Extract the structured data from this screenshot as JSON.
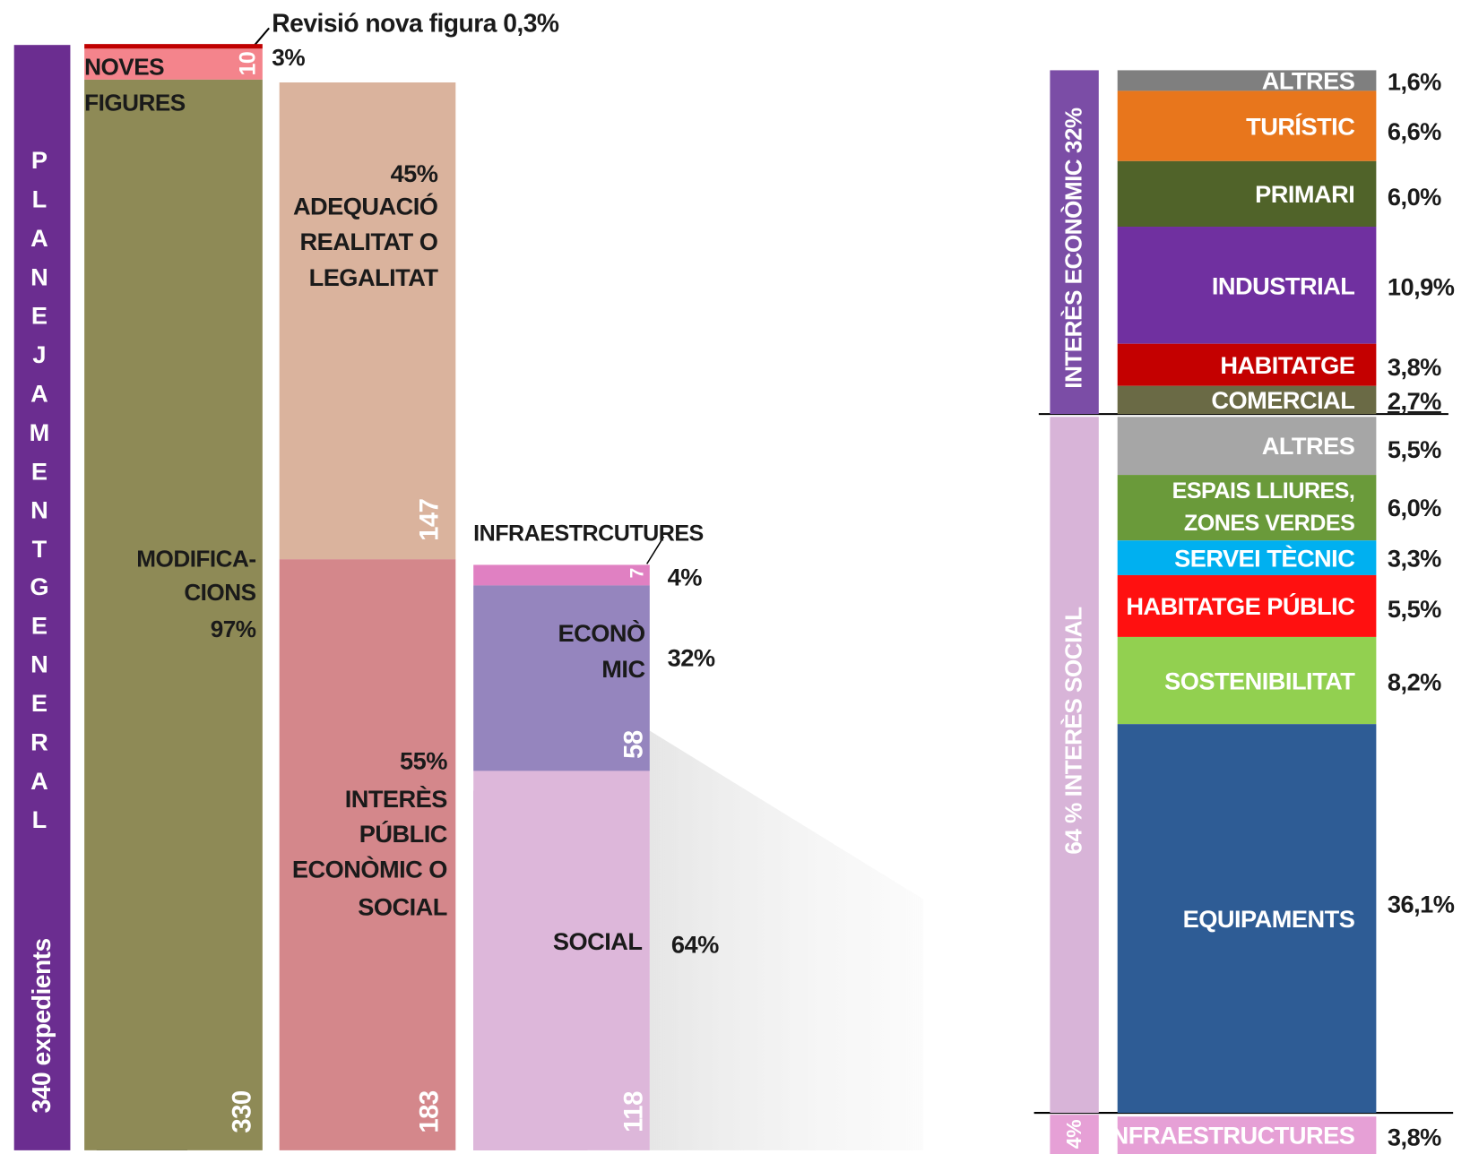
{
  "side_title": {
    "word1": "PLANEJAMENT",
    "word2": "GENERAL",
    "total": "340 expedients"
  },
  "revision_note": {
    "label": "Revisió nova figura 0,3%",
    "percent": "3%"
  },
  "column_types": {
    "noves": {
      "lines": [
        "NOVES",
        "FIGURES"
      ],
      "count": "10"
    },
    "modificacions": {
      "lines": [
        "MODIFICA-",
        "CIONS",
        "97%"
      ],
      "count": "330"
    }
  },
  "column_reasons": {
    "adequacio": {
      "lines": [
        "45%",
        "ADEQUACIÓ",
        "REALITAT O",
        "LEGALITAT"
      ],
      "count": "147"
    },
    "interes": {
      "lines": [
        "55%",
        "INTERÈS",
        "PÚBLIC",
        "ECONÒMIC O",
        "SOCIAL"
      ],
      "count": "183"
    }
  },
  "column_interest": {
    "infra": {
      "label": "INFRAESTRCUTURES",
      "count": "7",
      "percent": "4%"
    },
    "economic": {
      "lines": [
        "ECONÒ",
        "MIC"
      ],
      "count": "58",
      "percent": "32%"
    },
    "social": {
      "label": "SOCIAL",
      "count": "118",
      "percent": "64%"
    }
  },
  "right_axis": {
    "economic": "INTERÈS ECONÒMIC  32%",
    "social": "64 %  INTERÈS  SOCIAL",
    "infra": "4%"
  },
  "breakdown": [
    {
      "lines": [
        "ALTRES"
      ],
      "percent": "1,6%"
    },
    {
      "lines": [
        "TURÍSTIC"
      ],
      "percent": "6,6%"
    },
    {
      "lines": [
        "PRIMARI"
      ],
      "percent": "6,0%"
    },
    {
      "lines": [
        "INDUSTRIAL"
      ],
      "percent": "10,9%"
    },
    {
      "lines": [
        "HABITATGE"
      ],
      "percent": "3,8%"
    },
    {
      "lines": [
        "COMERCIAL"
      ],
      "percent": "2,7%"
    },
    {
      "lines": [
        "ALTRES"
      ],
      "percent": "5,5%"
    },
    {
      "lines": [
        "ESPAIS LLIURES,",
        "ZONES VERDES"
      ],
      "percent": "6,0%"
    },
    {
      "lines": [
        "SERVEI TÈCNIC"
      ],
      "percent": "3,3%"
    },
    {
      "lines": [
        "HABITATGE PÚBLIC"
      ],
      "percent": "5,5%"
    },
    {
      "lines": [
        "SOSTENIBILITAT"
      ],
      "percent": "8,2%"
    },
    {
      "lines": [
        "EQUIPAMENTS"
      ],
      "percent": "36,1%"
    },
    {
      "lines": [
        "INFRAESTRUCTURES"
      ],
      "percent": "3,8%"
    }
  ]
}
